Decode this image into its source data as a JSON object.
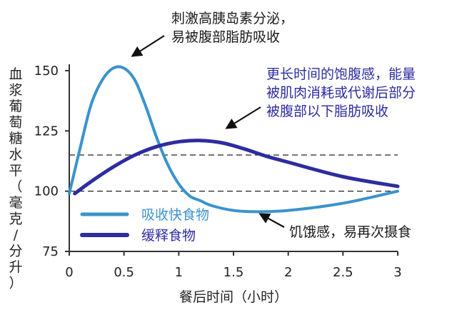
{
  "chart_data": {
    "type": "line",
    "xlabel": "餐后时间（小时）",
    "ylabel": "血浆葡萄糖水平（毫克/分升）",
    "xlim": [
      0,
      3
    ],
    "ylim": [
      75,
      155
    ],
    "x_ticks": [
      "0",
      "0.5",
      "1",
      "1.5",
      "2",
      "2.5",
      "3"
    ],
    "y_ticks": [
      "75",
      "100",
      "125",
      "150"
    ],
    "reference_lines": [
      100,
      115
    ],
    "series": [
      {
        "name": "吸收快食物",
        "color": "#3a93cc",
        "x": [
          0,
          0.1,
          0.2,
          0.3,
          0.4,
          0.5,
          0.6,
          0.7,
          0.8,
          0.9,
          1.0,
          1.1,
          1.2,
          1.3,
          1.5,
          1.7,
          2.0,
          2.5,
          3.0
        ],
        "y": [
          99,
          118,
          136,
          146,
          151,
          151,
          146,
          135,
          122,
          111,
          103,
          98,
          96,
          94,
          92,
          91.5,
          92,
          95,
          100
        ]
      },
      {
        "name": "缓释食物",
        "color": "#2d2ca0",
        "x": [
          0.05,
          0.2,
          0.4,
          0.6,
          0.8,
          1.0,
          1.2,
          1.4,
          1.6,
          1.8,
          2.0,
          2.5,
          3.0
        ],
        "y": [
          99,
          104,
          110,
          115,
          118.5,
          120.5,
          121,
          120,
          117.5,
          114.5,
          112,
          106,
          102
        ]
      }
    ],
    "legend": "lower-left",
    "annotations": [
      {
        "lines": [
          "刺激高胰岛素分泌，",
          "易被腹部脂肪吸收"
        ],
        "color": "#1a1a1a"
      },
      {
        "lines": [
          "更长时间的饱腹感，能量",
          "被肌肉消耗或代谢后部分",
          "被腹部以下脂肪吸收"
        ],
        "color": "#2d2ca0"
      },
      {
        "lines": [
          "饥饿感，易再次摄食"
        ],
        "color": "#1a1a1a"
      }
    ]
  }
}
